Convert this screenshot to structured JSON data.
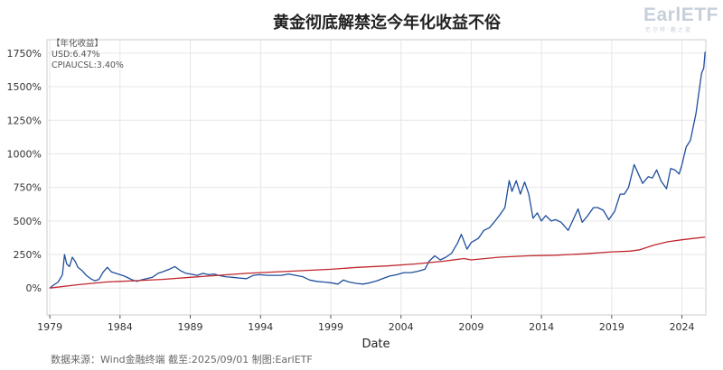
{
  "watermark": {
    "main": "EarlETF",
    "sub": "厄尔特·趣之道"
  },
  "footer": "数据来源：Wind金融终端 截至:2025/09/01 制图:EarlETF",
  "chart_data": {
    "type": "line",
    "title": "黄金彻底解禁迄今年化收益不俗",
    "xlabel": "Date",
    "ylabel": "",
    "xlim": [
      1978.8,
      2025.7
    ],
    "ylim": [
      -200,
      1850
    ],
    "x_ticks": [
      "1979",
      "1984",
      "1989",
      "1994",
      "1999",
      "2004",
      "2009",
      "2014",
      "2019",
      "2024"
    ],
    "y_ticks": [
      "0%",
      "250%",
      "500%",
      "750%",
      "1000%",
      "1250%",
      "1500%",
      "1750%"
    ],
    "y_tick_values": [
      0,
      250,
      500,
      750,
      1000,
      1250,
      1500,
      1750
    ],
    "grid": true,
    "legend": {
      "title": "【年化收益】",
      "entries": [
        "USD:6.47%",
        "CPIAUCSL:3.40%"
      ],
      "placement": "top-left"
    },
    "series": [
      {
        "name": "USD",
        "color": "#1f4e9c",
        "points": [
          [
            1979.0,
            0
          ],
          [
            1979.3,
            25
          ],
          [
            1979.6,
            45
          ],
          [
            1979.9,
            100
          ],
          [
            1980.05,
            250
          ],
          [
            1980.2,
            180
          ],
          [
            1980.4,
            160
          ],
          [
            1980.6,
            230
          ],
          [
            1980.8,
            200
          ],
          [
            1981.0,
            155
          ],
          [
            1981.3,
            130
          ],
          [
            1981.6,
            95
          ],
          [
            1981.9,
            70
          ],
          [
            1982.2,
            55
          ],
          [
            1982.5,
            65
          ],
          [
            1982.8,
            120
          ],
          [
            1983.1,
            155
          ],
          [
            1983.4,
            120
          ],
          [
            1983.7,
            110
          ],
          [
            1984.0,
            100
          ],
          [
            1984.3,
            90
          ],
          [
            1984.6,
            75
          ],
          [
            1984.9,
            60
          ],
          [
            1985.2,
            50
          ],
          [
            1985.5,
            60
          ],
          [
            1985.9,
            70
          ],
          [
            1986.3,
            80
          ],
          [
            1986.7,
            110
          ],
          [
            1987.0,
            120
          ],
          [
            1987.5,
            140
          ],
          [
            1987.9,
            160
          ],
          [
            1988.3,
            130
          ],
          [
            1988.7,
            110
          ],
          [
            1989.0,
            105
          ],
          [
            1989.5,
            95
          ],
          [
            1989.9,
            110
          ],
          [
            1990.3,
            100
          ],
          [
            1990.7,
            105
          ],
          [
            1991.0,
            95
          ],
          [
            1991.5,
            85
          ],
          [
            1992.0,
            80
          ],
          [
            1992.5,
            75
          ],
          [
            1993.0,
            70
          ],
          [
            1993.5,
            95
          ],
          [
            1993.9,
            100
          ],
          [
            1994.5,
            95
          ],
          [
            1995.0,
            95
          ],
          [
            1995.5,
            95
          ],
          [
            1996.0,
            105
          ],
          [
            1996.5,
            95
          ],
          [
            1997.0,
            85
          ],
          [
            1997.5,
            60
          ],
          [
            1998.0,
            50
          ],
          [
            1998.5,
            45
          ],
          [
            1999.0,
            40
          ],
          [
            1999.5,
            30
          ],
          [
            1999.9,
            60
          ],
          [
            2000.3,
            45
          ],
          [
            2000.8,
            35
          ],
          [
            2001.3,
            30
          ],
          [
            2001.8,
            40
          ],
          [
            2002.3,
            55
          ],
          [
            2002.8,
            75
          ],
          [
            2003.2,
            90
          ],
          [
            2003.7,
            100
          ],
          [
            2004.2,
            115
          ],
          [
            2004.7,
            115
          ],
          [
            2005.2,
            125
          ],
          [
            2005.7,
            140
          ],
          [
            2006.0,
            200
          ],
          [
            2006.4,
            240
          ],
          [
            2006.8,
            210
          ],
          [
            2007.2,
            230
          ],
          [
            2007.6,
            260
          ],
          [
            2008.0,
            330
          ],
          [
            2008.3,
            400
          ],
          [
            2008.7,
            290
          ],
          [
            2009.0,
            340
          ],
          [
            2009.5,
            370
          ],
          [
            2009.9,
            430
          ],
          [
            2010.3,
            450
          ],
          [
            2010.7,
            500
          ],
          [
            2011.0,
            540
          ],
          [
            2011.4,
            600
          ],
          [
            2011.7,
            800
          ],
          [
            2011.9,
            720
          ],
          [
            2012.2,
            800
          ],
          [
            2012.5,
            700
          ],
          [
            2012.8,
            790
          ],
          [
            2013.1,
            700
          ],
          [
            2013.4,
            520
          ],
          [
            2013.7,
            560
          ],
          [
            2014.0,
            500
          ],
          [
            2014.3,
            540
          ],
          [
            2014.7,
            500
          ],
          [
            2015.0,
            510
          ],
          [
            2015.4,
            490
          ],
          [
            2015.9,
            430
          ],
          [
            2016.3,
            520
          ],
          [
            2016.6,
            590
          ],
          [
            2016.9,
            490
          ],
          [
            2017.3,
            540
          ],
          [
            2017.7,
            600
          ],
          [
            2018.0,
            600
          ],
          [
            2018.4,
            580
          ],
          [
            2018.8,
            510
          ],
          [
            2019.2,
            570
          ],
          [
            2019.6,
            700
          ],
          [
            2019.9,
            700
          ],
          [
            2020.2,
            750
          ],
          [
            2020.6,
            920
          ],
          [
            2020.9,
            850
          ],
          [
            2021.2,
            780
          ],
          [
            2021.6,
            830
          ],
          [
            2021.9,
            820
          ],
          [
            2022.2,
            880
          ],
          [
            2022.5,
            800
          ],
          [
            2022.9,
            740
          ],
          [
            2023.2,
            890
          ],
          [
            2023.5,
            880
          ],
          [
            2023.8,
            850
          ],
          [
            2024.0,
            920
          ],
          [
            2024.3,
            1050
          ],
          [
            2024.6,
            1100
          ],
          [
            2024.8,
            1200
          ],
          [
            2025.0,
            1300
          ],
          [
            2025.2,
            1450
          ],
          [
            2025.4,
            1600
          ],
          [
            2025.55,
            1640
          ],
          [
            2025.65,
            1760
          ]
        ]
      },
      {
        "name": "CPIAUCSL",
        "color": "#c0272d",
        "points": [
          [
            1979.0,
            0
          ],
          [
            1981.0,
            25
          ],
          [
            1983.0,
            45
          ],
          [
            1985.0,
            55
          ],
          [
            1987.0,
            65
          ],
          [
            1989.0,
            80
          ],
          [
            1991.0,
            95
          ],
          [
            1993.0,
            110
          ],
          [
            1995.0,
            120
          ],
          [
            1997.0,
            130
          ],
          [
            1999.0,
            140
          ],
          [
            2001.0,
            155
          ],
          [
            2003.0,
            165
          ],
          [
            2005.0,
            180
          ],
          [
            2007.0,
            200
          ],
          [
            2008.5,
            220
          ],
          [
            2009.0,
            210
          ],
          [
            2011.0,
            230
          ],
          [
            2013.0,
            240
          ],
          [
            2015.0,
            245
          ],
          [
            2017.0,
            255
          ],
          [
            2019.0,
            270
          ],
          [
            2020.3,
            275
          ],
          [
            2021.0,
            285
          ],
          [
            2022.0,
            320
          ],
          [
            2023.0,
            345
          ],
          [
            2024.0,
            360
          ],
          [
            2025.65,
            380
          ]
        ]
      }
    ]
  }
}
